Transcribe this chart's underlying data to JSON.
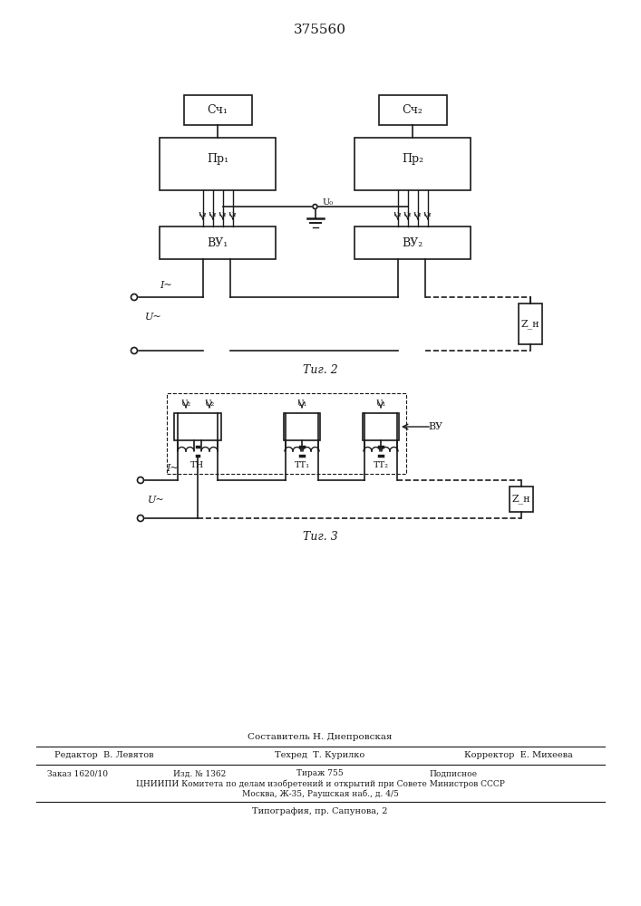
{
  "title": "375560",
  "fig2_label": "Τиг. 2",
  "fig3_label": "Τиг. 3",
  "background": "#ffffff",
  "line_color": "#1a1a1a",
  "footer_author": "Составитель Н. Днепровская",
  "footer_editor": "Редактор  В. Левятов",
  "footer_tech": "Техред  Т. Курилко",
  "footer_corrector": "Корректор  Е. Михеева",
  "footer_order": "Заказ 1620/10",
  "footer_izd": "Изд. № 1362",
  "footer_tirazh": "Тираж 755",
  "footer_podp": "Подписное",
  "footer_cniip": "ЦНИИПИ Комитета по делам изобретений и открытий при Совете Министров СССР",
  "footer_moscow": "Москва, Ж-35, Раушская наб., д. 4/5",
  "footer_typo": "Типография, пр. Сапунова, 2"
}
